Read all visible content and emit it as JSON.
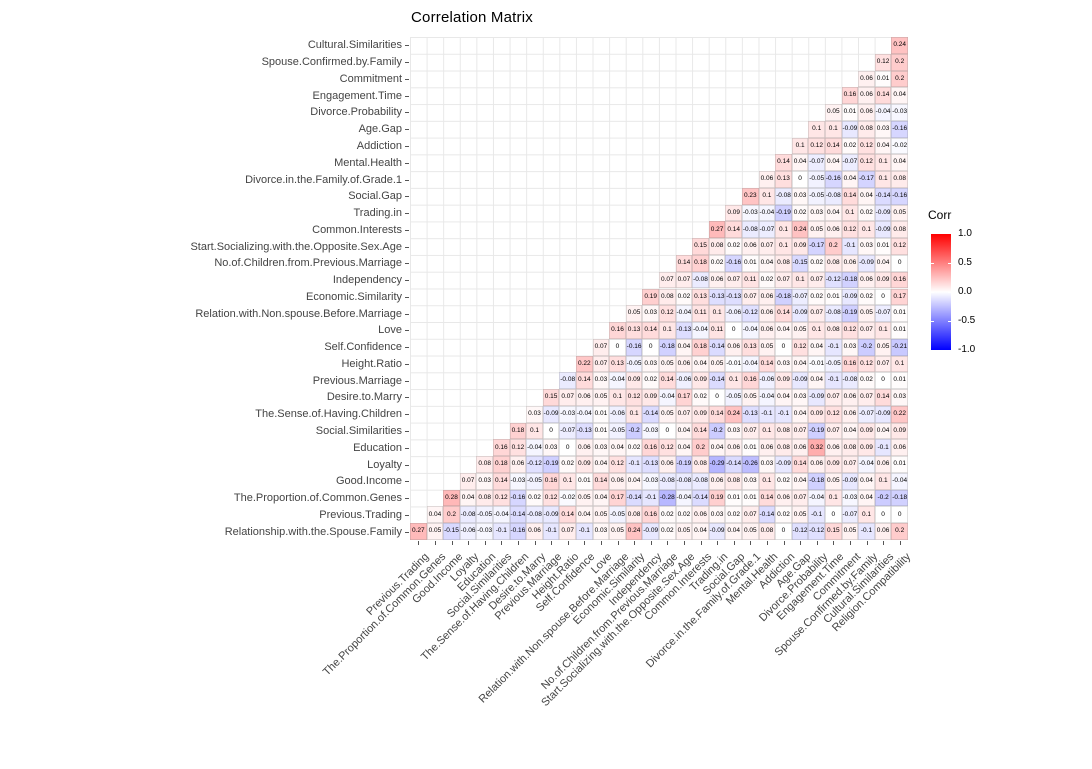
{
  "chart_data": {
    "type": "heatmap",
    "title": "Correlation Matrix",
    "legend": {
      "title": "Corr",
      "ticks": [
        "1.0",
        "0.5",
        "0.0",
        "-0.5",
        "-1.0"
      ],
      "tick_values": [
        1.0,
        0.5,
        0.0,
        -0.5,
        -1.0
      ],
      "high_color": "#FF0000",
      "mid_color": "#FFFFFF",
      "low_color": "#0000FF",
      "range": [
        -1,
        1
      ],
      "position": "right"
    },
    "grid": true,
    "triangle": "upper",
    "x_labels": [
      "Previous.Trading",
      "The.Proportion.of.Common.Genes",
      "Good.Income",
      "Loyalty",
      "Education",
      "Social.Similarities",
      "The.Sense.of.Having.Children",
      "Desire.to.Marry",
      "Previous.Marriage",
      "Height.Ratio",
      "Self.Confidence",
      "Love",
      "Relation.with.Non.spouse.Before.Marriage",
      "Economic.Similarity",
      "Independency",
      "No.of.Children.from.Previous.Marriage",
      "Start.Socializing.with.the.Opposite.Sex.Age",
      "Common.Interests",
      "Trading.in",
      "Social.Gap",
      "Divorce.in.the.Family.of.Grade.1",
      "Mental.Health",
      "Addiction",
      "Age.Gap",
      "Divorce.Probability",
      "Engagement.Time",
      "Commitment",
      "Spouse.Confirmed.by.Family",
      "Cultural.Similarities",
      "Religion.Compatibility"
    ],
    "rows": [
      {
        "label": "Cultural.Similarities",
        "values": [
          0.24
        ]
      },
      {
        "label": "Spouse.Confirmed.by.Family",
        "values": [
          0.12,
          0.2
        ]
      },
      {
        "label": "Commitment",
        "values": [
          0.06,
          0.01,
          0.2
        ]
      },
      {
        "label": "Engagement.Time",
        "values": [
          0.16,
          0.06,
          0.14,
          0.04
        ]
      },
      {
        "label": "Divorce.Probability",
        "values": [
          0.05,
          0.01,
          0.06,
          -0.04,
          -0.03
        ]
      },
      {
        "label": "Age.Gap",
        "values": [
          0.1,
          0.1,
          -0.09,
          0.08,
          0.03,
          -0.16
        ]
      },
      {
        "label": "Addiction",
        "values": [
          0.1,
          0.12,
          0.14,
          0.02,
          0.12,
          0.04,
          -0.02
        ]
      },
      {
        "label": "Mental.Health",
        "values": [
          0.14,
          0.04,
          -0.07,
          0.04,
          -0.07,
          0.12,
          0.1,
          0.04
        ]
      },
      {
        "label": "Divorce.in.the.Family.of.Grade.1",
        "values": [
          0.06,
          0.13,
          0,
          -0.05,
          -0.16,
          0.04,
          -0.17,
          0.1,
          0.08
        ]
      },
      {
        "label": "Social.Gap",
        "values": [
          0.23,
          0.1,
          -0.08,
          0.03,
          -0.05,
          -0.08,
          0.14,
          0.04,
          -0.14,
          -0.16
        ]
      },
      {
        "label": "Trading.in",
        "values": [
          0.09,
          -0.03,
          -0.04,
          -0.19,
          0.02,
          0.03,
          0.04,
          0.1,
          0.02,
          -0.09,
          0.05
        ]
      },
      {
        "label": "Common.Interests",
        "values": [
          0.27,
          0.14,
          -0.08,
          -0.07,
          0.1,
          0.24,
          0.05,
          0.06,
          0.12,
          0.1,
          -0.09,
          0.08
        ]
      },
      {
        "label": "Start.Socializing.with.the.Opposite.Sex.Age",
        "values": [
          0.15,
          0.08,
          0.02,
          0.06,
          0.07,
          0.1,
          0.09,
          -0.17,
          0.2,
          -0.1,
          0.03,
          0.01,
          0.12
        ]
      },
      {
        "label": "No.of.Children.from.Previous.Marriage",
        "values": [
          0.14,
          0.18,
          0.02,
          -0.16,
          0.01,
          0.04,
          0.08,
          -0.15,
          0.02,
          0.08,
          0.06,
          -0.09,
          0.04,
          0
        ]
      },
      {
        "label": "Independency",
        "values": [
          0.07,
          0.07,
          -0.08,
          0.06,
          0.07,
          0.11,
          0.02,
          0.07,
          0.1,
          0.07,
          -0.12,
          -0.18,
          0.06,
          0.09,
          0.16
        ]
      },
      {
        "label": "Economic.Similarity",
        "values": [
          0.19,
          0.08,
          0.02,
          0.13,
          -0.13,
          -0.13,
          0.07,
          0.06,
          -0.18,
          -0.07,
          0.02,
          0.01,
          -0.09,
          0.02,
          0,
          0.17
        ]
      },
      {
        "label": "Relation.with.Non.spouse.Before.Marriage",
        "values": [
          0.05,
          0.03,
          0.12,
          -0.04,
          0.11,
          0.1,
          -0.06,
          -0.12,
          0.06,
          0.14,
          -0.09,
          0.07,
          -0.08,
          -0.19,
          0.05,
          -0.07,
          0.01
        ]
      },
      {
        "label": "Love",
        "values": [
          0.16,
          0.13,
          0.14,
          0.1,
          -0.13,
          -0.04,
          0.11,
          0,
          -0.04,
          0.06,
          0.04,
          0.05,
          0.1,
          0.08,
          0.12,
          0.07,
          0.1,
          0.01
        ]
      },
      {
        "label": "Self.Confidence",
        "values": [
          0.07,
          0,
          -0.16,
          0,
          -0.18,
          0.04,
          0.18,
          -0.14,
          0.06,
          0.13,
          0.05,
          0,
          0.12,
          0.04,
          -0.1,
          0.03,
          -0.2,
          0.05,
          -0.21
        ]
      },
      {
        "label": "Height.Ratio",
        "values": [
          0.22,
          0.07,
          0.13,
          -0.05,
          0.03,
          0.05,
          0.06,
          0.04,
          0.05,
          -0.01,
          -0.04,
          0.14,
          0.03,
          0.04,
          -0.01,
          -0.05,
          0.16,
          0.12,
          0.07,
          0.1
        ]
      },
      {
        "label": "Previous.Marriage",
        "values": [
          -0.08,
          0.14,
          0.03,
          -0.04,
          0.09,
          0.02,
          0.14,
          -0.06,
          0.09,
          -0.14,
          0.1,
          0.16,
          -0.06,
          0.09,
          -0.09,
          0.04,
          -0.1,
          -0.08,
          0.02,
          0,
          0.01
        ]
      },
      {
        "label": "Desire.to.Marry",
        "values": [
          0.15,
          0.07,
          0.06,
          0.05,
          0.1,
          0.12,
          0.09,
          -0.04,
          0.17,
          0.02,
          0,
          -0.05,
          0.05,
          -0.04,
          0.04,
          0.03,
          -0.09,
          0.07,
          0.06,
          0.07,
          0.14,
          0.03
        ]
      },
      {
        "label": "The.Sense.of.Having.Children",
        "values": [
          0.03,
          -0.09,
          -0.03,
          -0.04,
          0.01,
          -0.06,
          0.1,
          -0.14,
          0.05,
          0.07,
          0.09,
          0.14,
          0.24,
          -0.13,
          -0.1,
          -0.1,
          0.04,
          0.09,
          0.12,
          0.06,
          -0.07,
          -0.09,
          0.22
        ]
      },
      {
        "label": "Social.Similarities",
        "values": [
          0.18,
          0.1,
          0,
          -0.07,
          -0.13,
          0.01,
          -0.05,
          -0.2,
          -0.03,
          0,
          0.04,
          0.14,
          -0.2,
          0.03,
          0.07,
          0.1,
          0.08,
          0.07,
          -0.19,
          0.07,
          0.04,
          0.09,
          0.04,
          0.09
        ]
      },
      {
        "label": "Education",
        "values": [
          0.16,
          0.12,
          -0.04,
          0.03,
          0,
          0.06,
          0.03,
          0.04,
          0.02,
          0.16,
          0.12,
          0.04,
          0.2,
          0.04,
          0.06,
          0.01,
          0.06,
          0.08,
          0.06,
          0.32,
          0.06,
          0.08,
          0.09,
          -0.1,
          0.06
        ]
      },
      {
        "label": "Loyalty",
        "values": [
          0.08,
          0.18,
          0.06,
          -0.12,
          -0.19,
          0.02,
          0.09,
          0.04,
          0.12,
          -0.1,
          -0.13,
          0.06,
          -0.19,
          0.08,
          -0.29,
          -0.14,
          -0.26,
          0.03,
          -0.09,
          0.14,
          0.06,
          0.09,
          0.07,
          -0.04,
          0.06,
          0.01
        ]
      },
      {
        "label": "Good.Income",
        "values": [
          0.07,
          0.03,
          0.14,
          -0.03,
          -0.05,
          0.16,
          0.1,
          0.01,
          0.14,
          0.06,
          0.04,
          -0.03,
          -0.08,
          -0.08,
          -0.08,
          0.06,
          0.08,
          0.03,
          0.1,
          0.02,
          0.04,
          -0.18,
          0.05,
          -0.09,
          0.04,
          0.1,
          -0.04
        ]
      },
      {
        "label": "The.Proportion.of.Common.Genes",
        "values": [
          0.28,
          0.04,
          0.08,
          0.12,
          -0.16,
          0.02,
          0.12,
          -0.02,
          0.05,
          0.04,
          0.17,
          -0.14,
          -0.1,
          -0.28,
          -0.04,
          -0.14,
          0.19,
          0.01,
          0.01,
          0.14,
          0.06,
          0.07,
          -0.04,
          0.1,
          -0.03,
          0.04,
          -0.2,
          -0.18
        ]
      },
      {
        "label": "Previous.Trading",
        "values": [
          0.04,
          0.2,
          -0.08,
          -0.05,
          -0.04,
          -0.14,
          -0.08,
          -0.09,
          0.14,
          0.04,
          0.05,
          -0.05,
          0.08,
          0.16,
          0.02,
          0.02,
          0.06,
          0.03,
          0.02,
          0.07,
          -0.14,
          0.02,
          0.05,
          -0.1,
          0,
          -0.07,
          0.1,
          0,
          0
        ]
      },
      {
        "label": "Relationship.with.the.Spouse.Family",
        "values": [
          0.27,
          0.05,
          -0.15,
          -0.06,
          -0.03,
          -0.1,
          -0.16,
          0.06,
          -0.1,
          0.07,
          -0.1,
          0.03,
          0.05,
          0.24,
          -0.09,
          0.02,
          0.05,
          0.04,
          -0.09,
          0.04,
          0.05,
          0.08,
          0,
          -0.12,
          -0.12,
          0.15,
          0.05,
          -0.1,
          0.06,
          0.2
        ]
      }
    ]
  }
}
